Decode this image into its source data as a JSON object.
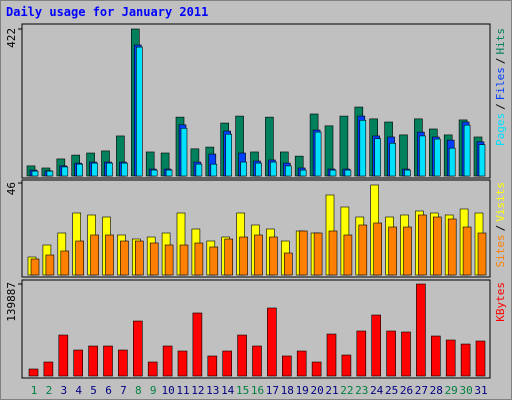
{
  "chart_data": [
    {
      "type": "bar",
      "title": "Daily usage for January 2011",
      "ylim": [
        0,
        422
      ],
      "yticks": [
        422
      ],
      "legend_separator": "/",
      "series": [
        {
          "name": "Hits",
          "color": "#00805c",
          "values": [
            29,
            23,
            49,
            60,
            66,
            72,
            115,
            422,
            69,
            66,
            169,
            78,
            83,
            152,
            172,
            69,
            169,
            69,
            57,
            178,
            144,
            172,
            198,
            164,
            155,
            118,
            164,
            135,
            118,
            161,
            112
          ]
        },
        {
          "name": "Files",
          "color": "#0040ff",
          "values": [
            17,
            15,
            29,
            37,
            40,
            40,
            40,
            376,
            20,
            20,
            147,
            40,
            63,
            129,
            66,
            43,
            46,
            37,
            23,
            132,
            20,
            20,
            172,
            115,
            112,
            20,
            126,
            112,
            103,
            155,
            98
          ]
        },
        {
          "name": "Pages",
          "color": "#00e0ff",
          "values": [
            14,
            14,
            26,
            34,
            37,
            37,
            37,
            370,
            17,
            17,
            137,
            34,
            34,
            120,
            40,
            37,
            40,
            29,
            17,
            126,
            17,
            17,
            160,
            107,
            94,
            17,
            115,
            106,
            80,
            146,
            90
          ]
        }
      ]
    },
    {
      "type": "bar",
      "ylim": [
        0,
        46
      ],
      "yticks": [
        46
      ],
      "legend_separator": "/",
      "series": [
        {
          "name": "Visits",
          "color": "#ffff00",
          "values": [
            9,
            15,
            21,
            31,
            30,
            29,
            20,
            18,
            19,
            21,
            31,
            23,
            17,
            19,
            31,
            25,
            23,
            17,
            22,
            21,
            40,
            34,
            29,
            45,
            29,
            30,
            32,
            31,
            30,
            33,
            31
          ]
        },
        {
          "name": "Sites",
          "color": "#ff8000",
          "values": [
            8,
            10,
            12,
            17,
            20,
            20,
            17,
            17,
            16,
            15,
            15,
            16,
            14,
            18,
            19,
            20,
            19,
            11,
            22,
            21,
            22,
            20,
            25,
            26,
            24,
            24,
            30,
            29,
            28,
            24,
            21
          ]
        }
      ]
    },
    {
      "type": "bar",
      "ylim": [
        0,
        139887
      ],
      "yticks": [
        139887
      ],
      "categories": [
        "1",
        "2",
        "3",
        "4",
        "5",
        "6",
        "7",
        "8",
        "9",
        "10",
        "11",
        "12",
        "13",
        "14",
        "15",
        "16",
        "17",
        "18",
        "19",
        "20",
        "21",
        "22",
        "23",
        "24",
        "25",
        "26",
        "27",
        "28",
        "29",
        "30",
        "31"
      ],
      "category_colors": [
        "#008040",
        "#008040",
        "#000080",
        "#000080",
        "#000080",
        "#000080",
        "#000080",
        "#008040",
        "#008040",
        "#000080",
        "#000080",
        "#000080",
        "#000080",
        "#000080",
        "#008040",
        "#008040",
        "#000080",
        "#000080",
        "#000080",
        "#000080",
        "#000080",
        "#008040",
        "#008040",
        "#000080",
        "#000080",
        "#000080",
        "#000080",
        "#000080",
        "#008040",
        "#008040",
        "#000080"
      ],
      "series": [
        {
          "name": "KBytes",
          "color": "#ff0000",
          "values": [
            10640,
            21280,
            62300,
            39500,
            45600,
            45600,
            39500,
            83600,
            21280,
            45600,
            38000,
            95800,
            30400,
            38000,
            62300,
            45600,
            103400,
            30400,
            38000,
            21280,
            63800,
            31900,
            68400,
            92700,
            68400,
            66900,
            139887,
            60800,
            54700,
            48600,
            53200
          ]
        }
      ]
    }
  ]
}
